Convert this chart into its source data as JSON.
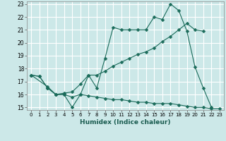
{
  "xlabel": "Humidex (Indice chaleur)",
  "bg_color": "#cce8e8",
  "grid_color": "#ffffff",
  "line_color": "#1a6b5a",
  "xlim": [
    -0.5,
    23.5
  ],
  "ylim": [
    14.8,
    23.2
  ],
  "xticks": [
    0,
    1,
    2,
    3,
    4,
    5,
    6,
    7,
    8,
    9,
    10,
    11,
    12,
    13,
    14,
    15,
    16,
    17,
    18,
    19,
    20,
    21,
    22,
    23
  ],
  "yticks": [
    15,
    16,
    17,
    18,
    19,
    20,
    21,
    22,
    23
  ],
  "line1_x": [
    0,
    1,
    2,
    3,
    4,
    5,
    6,
    7,
    8,
    9,
    10,
    11,
    12,
    13,
    14,
    15,
    16,
    17,
    18,
    19,
    20,
    21,
    22
  ],
  "line1_y": [
    17.5,
    17.4,
    16.5,
    16.0,
    16.0,
    15.0,
    16.0,
    17.5,
    16.5,
    18.8,
    21.2,
    21.0,
    21.0,
    21.0,
    21.0,
    22.0,
    21.8,
    23.0,
    22.5,
    20.9,
    18.1,
    16.5,
    15.0
  ],
  "line2_x": [
    0,
    2,
    3,
    4,
    5,
    6,
    7,
    8,
    9,
    10,
    11,
    12,
    13,
    14,
    15,
    16,
    17,
    18,
    19,
    20,
    21
  ],
  "line2_y": [
    17.5,
    16.6,
    16.0,
    16.1,
    16.2,
    16.8,
    17.5,
    17.5,
    17.8,
    18.2,
    18.5,
    18.8,
    19.1,
    19.3,
    19.6,
    20.1,
    20.5,
    21.0,
    21.5,
    21.0,
    20.9
  ],
  "line3_x": [
    0,
    1,
    2,
    3,
    4,
    5,
    6,
    7,
    8,
    9,
    10,
    11,
    12,
    13,
    14,
    15,
    16,
    17,
    18,
    19,
    20,
    21,
    22,
    23
  ],
  "line3_y": [
    17.5,
    17.4,
    16.5,
    16.0,
    16.0,
    15.8,
    16.0,
    15.9,
    15.8,
    15.7,
    15.6,
    15.6,
    15.5,
    15.4,
    15.4,
    15.3,
    15.3,
    15.3,
    15.2,
    15.1,
    15.0,
    15.0,
    14.9,
    14.9
  ]
}
